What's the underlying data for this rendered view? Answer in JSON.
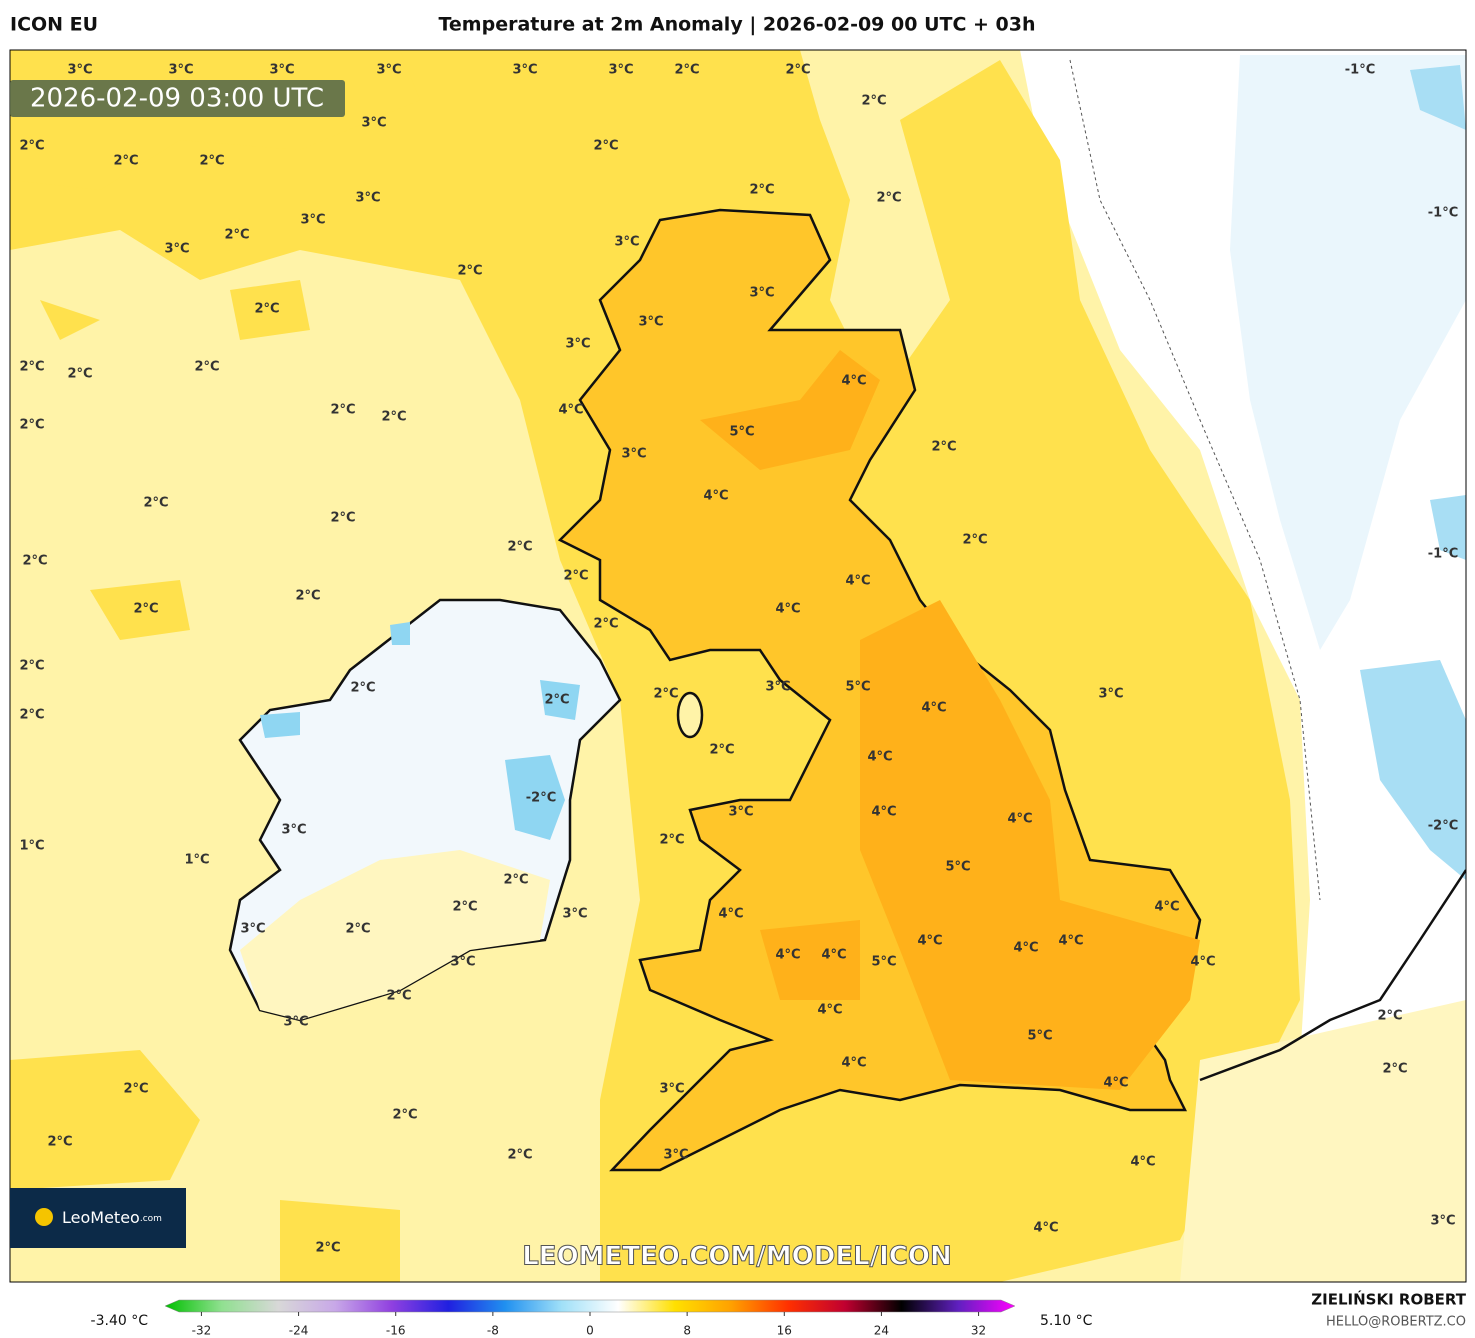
{
  "header": {
    "model": "ICON EU",
    "title": "Temperature at 2m Anomaly | 2026-02-09 00 UTC + 03h"
  },
  "valid_time": "2026-02-09 03:00 UTC",
  "watermark": "LEOMETEO.COM/MODEL/ICON",
  "logo": {
    "name": "LeoMeteo",
    "suffix": ".com"
  },
  "credit": {
    "author": "ZIELIŃSKI ROBERT",
    "email": "HELLO@ROBERTZ.CO"
  },
  "map_labels": [
    "3°C",
    "3°C",
    "3°C",
    "3°C",
    "3°C",
    "3°C",
    "2°C",
    "2°C",
    "-1°C",
    "3°C",
    "2°C",
    "2°C",
    "2°C",
    "2°C",
    "2°C",
    "3°C",
    "2°C",
    "2°C",
    "-1°C",
    "3°C",
    "2°C",
    "3°C",
    "3°C",
    "2°C",
    "3°C",
    "2°C",
    "3°C",
    "3°C",
    "2°C",
    "2°C",
    "2°C",
    "4°C",
    "2°C",
    "2°C",
    "4°C",
    "2°C",
    "5°C",
    "2°C",
    "3°C",
    "4°C",
    "2°C",
    "2°C",
    "2°C",
    "2°C",
    "2°C",
    "-1°C",
    "2°C",
    "4°C",
    "2°C",
    "2°C",
    "4°C",
    "2°C",
    "2°C",
    "2°C",
    "2°C",
    "2°C",
    "3°C",
    "5°C",
    "3°C",
    "4°C",
    "2°C",
    "2°C",
    "4°C",
    "3°C",
    "4°C",
    "4°C",
    "-2°C",
    "3°C",
    "2°C",
    "-2°C",
    "1°C",
    "1°C",
    "5°C",
    "2°C",
    "2°C",
    "3°C",
    "4°C",
    "4°C",
    "3°C",
    "2°C",
    "4°C",
    "4°C",
    "4°C",
    "4°C",
    "4°C",
    "5°C",
    "3°C",
    "4°C",
    "2°C",
    "3°C",
    "4°C",
    "5°C",
    "4°C",
    "2°C",
    "4°C",
    "2°C",
    "3°C",
    "2°C",
    "2°C",
    "2°C",
    "3°C",
    "4°C",
    "4°C",
    "3°C",
    "2°C",
    "2°C"
  ],
  "colorbar": {
    "min_label": "-3.40 °C",
    "max_label": "5.10 °C",
    "lim": [
      -35,
      35
    ],
    "ticks": [
      -32,
      -24,
      -16,
      -8,
      0,
      8,
      16,
      24,
      32
    ],
    "colors": [
      "#00c000",
      "#90e090",
      "#d8d8d8",
      "#c8a8e8",
      "#9040e0",
      "#2020e0",
      "#2090f0",
      "#a0e0f8",
      "#ffffff",
      "#ffe000",
      "#ffa000",
      "#ff3000",
      "#c00030",
      "#000000",
      "#6020c0",
      "#ff00ff"
    ]
  }
}
